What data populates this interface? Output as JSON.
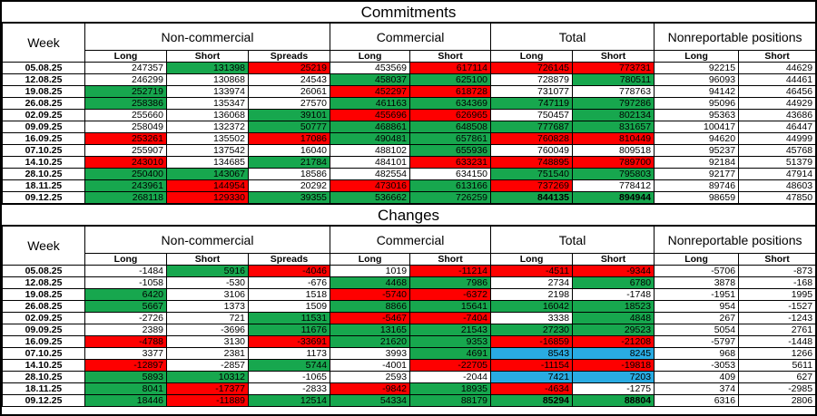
{
  "colors": {
    "green": "#17a74e",
    "red": "#fe0000",
    "blue": "#29abe2",
    "white": "#ffffff"
  },
  "sections": [
    {
      "title": "Commitments",
      "week_header": "Week",
      "groups": [
        {
          "label": "Non-commercial",
          "columns": [
            "Long",
            "Short",
            "Spreads"
          ]
        },
        {
          "label": "Commercial",
          "columns": [
            "Long",
            "Short"
          ]
        },
        {
          "label": "Total",
          "columns": [
            "Long",
            "Short"
          ]
        },
        {
          "label": "Nonreportable positions",
          "columns": [
            "Long",
            "Short"
          ]
        }
      ],
      "rows": [
        {
          "week": "05.08.25",
          "cells": [
            [
              "247357",
              "w"
            ],
            [
              "131398",
              "g"
            ],
            [
              "25219",
              "r"
            ],
            [
              "453569",
              "w"
            ],
            [
              "617114",
              "r"
            ],
            [
              "726145",
              "r"
            ],
            [
              "773731",
              "r"
            ],
            [
              "92215",
              "w"
            ],
            [
              "44629",
              "w"
            ]
          ]
        },
        {
          "week": "12.08.25",
          "cells": [
            [
              "246299",
              "w"
            ],
            [
              "130868",
              "w"
            ],
            [
              "24543",
              "w"
            ],
            [
              "458037",
              "g"
            ],
            [
              "625100",
              "g"
            ],
            [
              "728879",
              "w"
            ],
            [
              "780511",
              "g"
            ],
            [
              "96093",
              "w"
            ],
            [
              "44461",
              "w"
            ]
          ]
        },
        {
          "week": "19.08.25",
          "cells": [
            [
              "252719",
              "g"
            ],
            [
              "133974",
              "w"
            ],
            [
              "26061",
              "w"
            ],
            [
              "452297",
              "r"
            ],
            [
              "618728",
              "r"
            ],
            [
              "731077",
              "w"
            ],
            [
              "778763",
              "w"
            ],
            [
              "94142",
              "w"
            ],
            [
              "46456",
              "w"
            ]
          ]
        },
        {
          "week": "26.08.25",
          "cells": [
            [
              "258386",
              "g"
            ],
            [
              "135347",
              "w"
            ],
            [
              "27570",
              "w"
            ],
            [
              "461163",
              "g"
            ],
            [
              "634369",
              "g"
            ],
            [
              "747119",
              "g"
            ],
            [
              "797286",
              "g"
            ],
            [
              "95096",
              "w"
            ],
            [
              "44929",
              "w"
            ]
          ]
        },
        {
          "week": "02.09.25",
          "cells": [
            [
              "255660",
              "w"
            ],
            [
              "136068",
              "w"
            ],
            [
              "39101",
              "g"
            ],
            [
              "455696",
              "r"
            ],
            [
              "626965",
              "r"
            ],
            [
              "750457",
              "w"
            ],
            [
              "802134",
              "g"
            ],
            [
              "95363",
              "w"
            ],
            [
              "43686",
              "w"
            ]
          ]
        },
        {
          "week": "09.09.25",
          "cells": [
            [
              "258049",
              "w"
            ],
            [
              "132372",
              "w"
            ],
            [
              "50777",
              "g"
            ],
            [
              "468861",
              "g"
            ],
            [
              "648508",
              "g"
            ],
            [
              "777687",
              "g"
            ],
            [
              "831657",
              "g"
            ],
            [
              "100417",
              "w"
            ],
            [
              "46447",
              "w"
            ]
          ]
        },
        {
          "week": "16.09.25",
          "cells": [
            [
              "253261",
              "r"
            ],
            [
              "135502",
              "w"
            ],
            [
              "17086",
              "r"
            ],
            [
              "490481",
              "g"
            ],
            [
              "657861",
              "g"
            ],
            [
              "760828",
              "r"
            ],
            [
              "810449",
              "r"
            ],
            [
              "94620",
              "w"
            ],
            [
              "44999",
              "w"
            ]
          ]
        },
        {
          "week": "07.10.25",
          "cells": [
            [
              "255907",
              "w"
            ],
            [
              "137542",
              "w"
            ],
            [
              "16040",
              "w"
            ],
            [
              "488102",
              "w"
            ],
            [
              "655936",
              "g"
            ],
            [
              "760049",
              "w"
            ],
            [
              "809518",
              "w"
            ],
            [
              "95237",
              "w"
            ],
            [
              "45768",
              "w"
            ]
          ]
        },
        {
          "week": "14.10.25",
          "cells": [
            [
              "243010",
              "r"
            ],
            [
              "134685",
              "w"
            ],
            [
              "21784",
              "g"
            ],
            [
              "484101",
              "w"
            ],
            [
              "633231",
              "r"
            ],
            [
              "748895",
              "r"
            ],
            [
              "789700",
              "r"
            ],
            [
              "92184",
              "w"
            ],
            [
              "51379",
              "w"
            ]
          ]
        },
        {
          "week": "28.10.25",
          "cells": [
            [
              "250400",
              "g"
            ],
            [
              "143067",
              "g"
            ],
            [
              "18586",
              "w"
            ],
            [
              "482554",
              "w"
            ],
            [
              "634150",
              "w"
            ],
            [
              "751540",
              "g"
            ],
            [
              "795803",
              "g"
            ],
            [
              "92177",
              "w"
            ],
            [
              "47914",
              "w"
            ]
          ]
        },
        {
          "week": "18.11.25",
          "cells": [
            [
              "243961",
              "g"
            ],
            [
              "144954",
              "r"
            ],
            [
              "20292",
              "w"
            ],
            [
              "473016",
              "r"
            ],
            [
              "613166",
              "g"
            ],
            [
              "737269",
              "r"
            ],
            [
              "778412",
              "w"
            ],
            [
              "89746",
              "w"
            ],
            [
              "48603",
              "w"
            ]
          ]
        },
        {
          "week": "09.12.25",
          "cells": [
            [
              "268118",
              "g"
            ],
            [
              "129330",
              "r"
            ],
            [
              "39355",
              "g"
            ],
            [
              "536662",
              "g"
            ],
            [
              "726259",
              "g"
            ],
            [
              "844135",
              "g",
              "bold"
            ],
            [
              "894944",
              "g",
              "bold"
            ],
            [
              "98659",
              "w"
            ],
            [
              "47850",
              "w"
            ]
          ]
        }
      ]
    },
    {
      "title": "Changes",
      "week_header": "Week",
      "groups": [
        {
          "label": "Non-commercial",
          "columns": [
            "Long",
            "Short",
            "Spreads"
          ]
        },
        {
          "label": "Commercial",
          "columns": [
            "Long",
            "Short"
          ]
        },
        {
          "label": "Total",
          "columns": [
            "Long",
            "Short"
          ]
        },
        {
          "label": "Nonreportable positions",
          "columns": [
            "Long",
            "Short"
          ]
        }
      ],
      "rows": [
        {
          "week": "05.08.25",
          "cells": [
            [
              "-1484",
              "w"
            ],
            [
              "5916",
              "g"
            ],
            [
              "-4046",
              "r"
            ],
            [
              "1019",
              "w"
            ],
            [
              "-11214",
              "r"
            ],
            [
              "-4511",
              "r"
            ],
            [
              "-9344",
              "r"
            ],
            [
              "-5706",
              "w"
            ],
            [
              "-873",
              "w"
            ]
          ]
        },
        {
          "week": "12.08.25",
          "cells": [
            [
              "-1058",
              "w"
            ],
            [
              "-530",
              "w"
            ],
            [
              "-676",
              "w"
            ],
            [
              "4468",
              "g"
            ],
            [
              "7986",
              "g"
            ],
            [
              "2734",
              "w"
            ],
            [
              "6780",
              "g"
            ],
            [
              "3878",
              "w"
            ],
            [
              "-168",
              "w"
            ]
          ]
        },
        {
          "week": "19.08.25",
          "cells": [
            [
              "6420",
              "g"
            ],
            [
              "3106",
              "w"
            ],
            [
              "1518",
              "w"
            ],
            [
              "-5740",
              "r"
            ],
            [
              "-6372",
              "r"
            ],
            [
              "2198",
              "w"
            ],
            [
              "-1748",
              "w"
            ],
            [
              "-1951",
              "w"
            ],
            [
              "1995",
              "w"
            ]
          ]
        },
        {
          "week": "26.08.25",
          "cells": [
            [
              "5667",
              "g"
            ],
            [
              "1373",
              "w"
            ],
            [
              "1509",
              "w"
            ],
            [
              "8866",
              "g"
            ],
            [
              "15641",
              "g"
            ],
            [
              "16042",
              "g"
            ],
            [
              "18523",
              "g"
            ],
            [
              "954",
              "w"
            ],
            [
              "-1527",
              "w"
            ]
          ]
        },
        {
          "week": "02.09.25",
          "cells": [
            [
              "-2726",
              "w"
            ],
            [
              "721",
              "w"
            ],
            [
              "11531",
              "g"
            ],
            [
              "-5467",
              "r"
            ],
            [
              "-7404",
              "r"
            ],
            [
              "3338",
              "w"
            ],
            [
              "4848",
              "g"
            ],
            [
              "267",
              "w"
            ],
            [
              "-1243",
              "w"
            ]
          ]
        },
        {
          "week": "09.09.25",
          "cells": [
            [
              "2389",
              "w"
            ],
            [
              "-3696",
              "w"
            ],
            [
              "11676",
              "g"
            ],
            [
              "13165",
              "g"
            ],
            [
              "21543",
              "g"
            ],
            [
              "27230",
              "g"
            ],
            [
              "29523",
              "g"
            ],
            [
              "5054",
              "w"
            ],
            [
              "2761",
              "w"
            ]
          ]
        },
        {
          "week": "16.09.25",
          "cells": [
            [
              "-4788",
              "r"
            ],
            [
              "3130",
              "w"
            ],
            [
              "-33691",
              "r"
            ],
            [
              "21620",
              "g"
            ],
            [
              "9353",
              "g"
            ],
            [
              "-16859",
              "r"
            ],
            [
              "-21208",
              "r"
            ],
            [
              "-5797",
              "w"
            ],
            [
              "-1448",
              "w"
            ]
          ]
        },
        {
          "week": "07.10.25",
          "cells": [
            [
              "3377",
              "w"
            ],
            [
              "2381",
              "w"
            ],
            [
              "1173",
              "w"
            ],
            [
              "3993",
              "w"
            ],
            [
              "4691",
              "g"
            ],
            [
              "8543",
              "b"
            ],
            [
              "8245",
              "b"
            ],
            [
              "968",
              "w"
            ],
            [
              "1266",
              "w"
            ]
          ]
        },
        {
          "week": "14.10.25",
          "cells": [
            [
              "-12897",
              "r"
            ],
            [
              "-2857",
              "w"
            ],
            [
              "5744",
              "g"
            ],
            [
              "-4001",
              "w"
            ],
            [
              "-22705",
              "r"
            ],
            [
              "-11154",
              "r"
            ],
            [
              "-19818",
              "r"
            ],
            [
              "-3053",
              "w"
            ],
            [
              "5611",
              "w"
            ]
          ]
        },
        {
          "week": "28.10.25",
          "cells": [
            [
              "5893",
              "g"
            ],
            [
              "10312",
              "g"
            ],
            [
              "-1065",
              "w"
            ],
            [
              "2593",
              "w"
            ],
            [
              "-2044",
              "w"
            ],
            [
              "7421",
              "b"
            ],
            [
              "7203",
              "b"
            ],
            [
              "409",
              "w"
            ],
            [
              "627",
              "w"
            ]
          ]
        },
        {
          "week": "18.11.25",
          "cells": [
            [
              "8041",
              "g"
            ],
            [
              "-17377",
              "r"
            ],
            [
              "-2833",
              "w"
            ],
            [
              "-9842",
              "r"
            ],
            [
              "18935",
              "g"
            ],
            [
              "-4634",
              "r"
            ],
            [
              "-1275",
              "w"
            ],
            [
              "374",
              "w"
            ],
            [
              "-2985",
              "w"
            ]
          ]
        },
        {
          "week": "09.12.25",
          "cells": [
            [
              "18446",
              "g"
            ],
            [
              "-11889",
              "r"
            ],
            [
              "12514",
              "g"
            ],
            [
              "54334",
              "g"
            ],
            [
              "88179",
              "g"
            ],
            [
              "85294",
              "g",
              "bold"
            ],
            [
              "88804",
              "g",
              "bold"
            ],
            [
              "6316",
              "w"
            ],
            [
              "2806",
              "w"
            ]
          ]
        }
      ]
    }
  ]
}
